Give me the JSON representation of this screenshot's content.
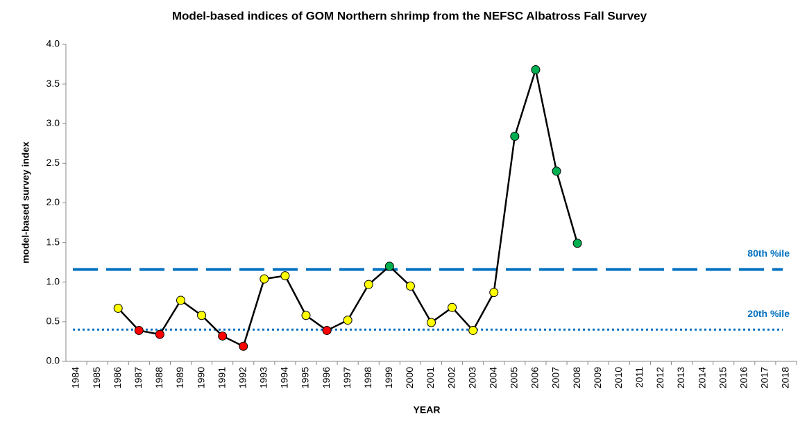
{
  "chart_data": {
    "type": "line",
    "title": "Model-based indices of GOM Northern shrimp from the NEFSC Albatross Fall Survey",
    "x_label": "YEAR",
    "y_label": "model-based survey index",
    "categories": [
      "1984",
      "1985",
      "1986",
      "1987",
      "1988",
      "1989",
      "1990",
      "1991",
      "1992",
      "1993",
      "1994",
      "1995",
      "1996",
      "1997",
      "1998",
      "1999",
      "2000",
      "2001",
      "2002",
      "2003",
      "2004",
      "2005",
      "2006",
      "2007",
      "2008",
      "2009",
      "2010",
      "2011",
      "2012",
      "2013",
      "2014",
      "2015",
      "2016",
      "2017",
      "2018"
    ],
    "series": [
      {
        "color": "#000000",
        "values": [
          null,
          null,
          0.67,
          0.39,
          0.34,
          0.77,
          0.58,
          0.32,
          0.19,
          1.04,
          1.08,
          0.58,
          0.39,
          0.52,
          0.97,
          1.2,
          0.95,
          0.49,
          0.68,
          0.39,
          0.87,
          2.84,
          3.68,
          2.4,
          1.49,
          null,
          null,
          null,
          null,
          null,
          null,
          null,
          null,
          null,
          null
        ],
        "point_colors": [
          null,
          null,
          "#ffff00",
          "#ff0000",
          "#ff0000",
          "#ffff00",
          "#ffff00",
          "#ff0000",
          "#ff0000",
          "#ffff00",
          "#ffff00",
          "#ffff00",
          "#ff0000",
          "#ffff00",
          "#ffff00",
          "#00b050",
          "#ffff00",
          "#ffff00",
          "#ffff00",
          "#ffff00",
          "#ffff00",
          "#00b050",
          "#00b050",
          "#00b050",
          "#00b050",
          null,
          null,
          null,
          null,
          null,
          null,
          null,
          null,
          null,
          null
        ]
      }
    ],
    "reference_lines": [
      {
        "value": 1.16,
        "label": "80th %ile",
        "style": "dashed",
        "color": "#0070c0"
      },
      {
        "value": 0.4,
        "label": "20th %ile",
        "style": "dotted",
        "color": "#0070c0"
      }
    ],
    "ylim": [
      0,
      4
    ],
    "yticks": [
      {
        "value": 0,
        "label": "0.0"
      },
      0.5,
      {
        "value": 1,
        "label": "1.0"
      },
      1.5,
      {
        "value": 2,
        "label": "2.0"
      },
      2.5,
      {
        "value": 3,
        "label": "3.0"
      },
      3.5,
      {
        "value": 4,
        "label": "4.0"
      }
    ],
    "grid": false
  }
}
